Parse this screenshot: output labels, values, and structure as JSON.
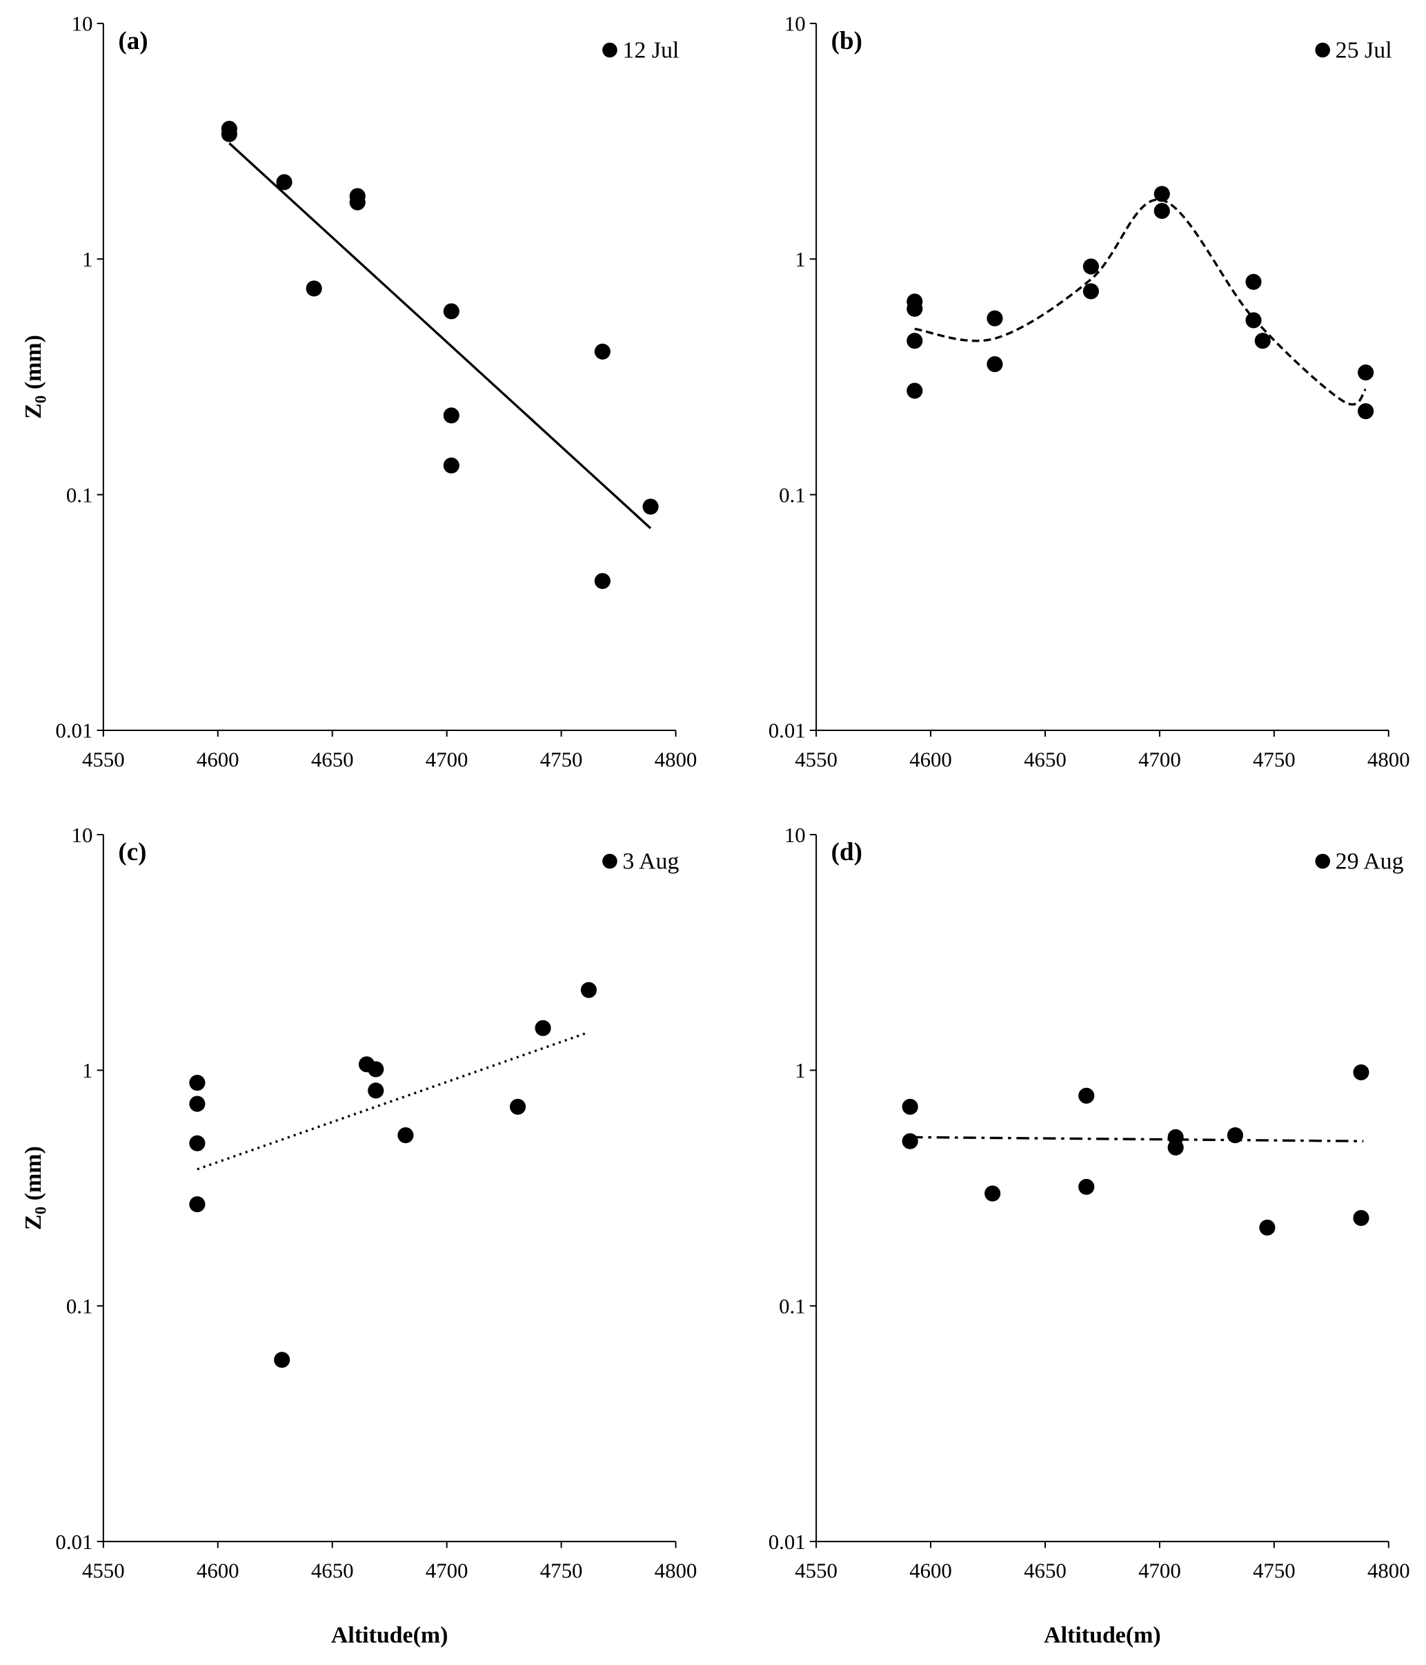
{
  "chart_data": [
    {
      "type": "scatter",
      "panel_label": "(a)",
      "legend": "12 Jul",
      "trend_style": "solid",
      "xlabel": "",
      "ylabel": "Z0 (mm)",
      "ylabel_main": "Z",
      "ylabel_sub": "0",
      "ylabel_rest": " (mm)",
      "xlim": [
        4550,
        4800
      ],
      "ylim": [
        0.01,
        10
      ],
      "yscale": "log",
      "xticks": [
        "4550",
        "4600",
        "4650",
        "4700",
        "4750",
        "4800"
      ],
      "yticks": [
        "0.01",
        "0.1",
        "1",
        "10"
      ],
      "points": [
        [
          4605,
          3.57
        ],
        [
          4605,
          3.39
        ],
        [
          4629,
          2.12
        ],
        [
          4661,
          1.85
        ],
        [
          4661,
          1.74
        ],
        [
          4642,
          0.75
        ],
        [
          4702,
          0.6
        ],
        [
          4702,
          0.217
        ],
        [
          4702,
          0.133
        ],
        [
          4768,
          0.405
        ],
        [
          4768,
          0.043
        ],
        [
          4789,
          0.089
        ]
      ],
      "trend": [
        [
          4605,
          3.1
        ],
        [
          4789,
          0.072
        ]
      ]
    },
    {
      "type": "scatter",
      "panel_label": "(b)",
      "legend": "25 Jul",
      "trend_style": "dashed-curve",
      "xlabel": "",
      "ylabel": "",
      "xlim": [
        4550,
        4800
      ],
      "ylim": [
        0.01,
        10
      ],
      "yscale": "log",
      "xticks": [
        "4550",
        "4600",
        "4650",
        "4700",
        "4750",
        "4800"
      ],
      "yticks": [
        "0.01",
        "0.1",
        "1",
        "10"
      ],
      "points": [
        [
          4593,
          0.66
        ],
        [
          4593,
          0.615
        ],
        [
          4593,
          0.45
        ],
        [
          4593,
          0.276
        ],
        [
          4628,
          0.56
        ],
        [
          4628,
          0.358
        ],
        [
          4670,
          0.93
        ],
        [
          4670,
          0.73
        ],
        [
          4701,
          1.89
        ],
        [
          4701,
          1.6
        ],
        [
          4741,
          0.8
        ],
        [
          4741,
          0.55
        ],
        [
          4745,
          0.45
        ],
        [
          4790,
          0.33
        ],
        [
          4790,
          0.226
        ]
      ],
      "trend": [
        [
          4593,
          0.505
        ],
        [
          4628,
          0.46
        ],
        [
          4670,
          0.82
        ],
        [
          4701,
          1.78
        ],
        [
          4741,
          0.56
        ],
        [
          4780,
          0.25
        ],
        [
          4790,
          0.28
        ]
      ]
    },
    {
      "type": "scatter",
      "panel_label": "(c)",
      "legend": "3 Aug",
      "trend_style": "dotted",
      "xlabel": "Altitude(m)",
      "ylabel": "Z0 (mm)",
      "ylabel_main": "Z",
      "ylabel_sub": "0",
      "ylabel_rest": " (mm)",
      "xlim": [
        4550,
        4800
      ],
      "ylim": [
        0.01,
        10
      ],
      "yscale": "log",
      "xticks": [
        "4550",
        "4600",
        "4650",
        "4700",
        "4750",
        "4800"
      ],
      "yticks": [
        "0.01",
        "0.1",
        "1",
        "10"
      ],
      "points": [
        [
          4591,
          0.885
        ],
        [
          4591,
          0.72
        ],
        [
          4591,
          0.49
        ],
        [
          4591,
          0.27
        ],
        [
          4628,
          0.059
        ],
        [
          4665,
          1.06
        ],
        [
          4669,
          1.01
        ],
        [
          4669,
          0.82
        ],
        [
          4682,
          0.53
        ],
        [
          4731,
          0.7
        ],
        [
          4742,
          1.51
        ],
        [
          4762,
          2.19
        ]
      ],
      "trend": [
        [
          4591,
          0.38
        ],
        [
          4762,
          1.45
        ]
      ]
    },
    {
      "type": "scatter",
      "panel_label": "(d)",
      "legend": "29 Aug",
      "trend_style": "dash-dot",
      "xlabel": "Altitude(m)",
      "ylabel": "",
      "xlim": [
        4550,
        4800
      ],
      "ylim": [
        0.01,
        10
      ],
      "yscale": "log",
      "xticks": [
        "4550",
        "4600",
        "4650",
        "4700",
        "4750",
        "4800"
      ],
      "yticks": [
        "0.01",
        "0.1",
        "1",
        "10"
      ],
      "points": [
        [
          4591,
          0.7
        ],
        [
          4591,
          0.5
        ],
        [
          4627,
          0.3
        ],
        [
          4668,
          0.78
        ],
        [
          4668,
          0.32
        ],
        [
          4707,
          0.52
        ],
        [
          4707,
          0.47
        ],
        [
          4733,
          0.53
        ],
        [
          4747,
          0.215
        ],
        [
          4788,
          0.98
        ],
        [
          4788,
          0.236
        ]
      ],
      "trend": [
        [
          4591,
          0.52
        ],
        [
          4789,
          0.5
        ]
      ]
    }
  ]
}
